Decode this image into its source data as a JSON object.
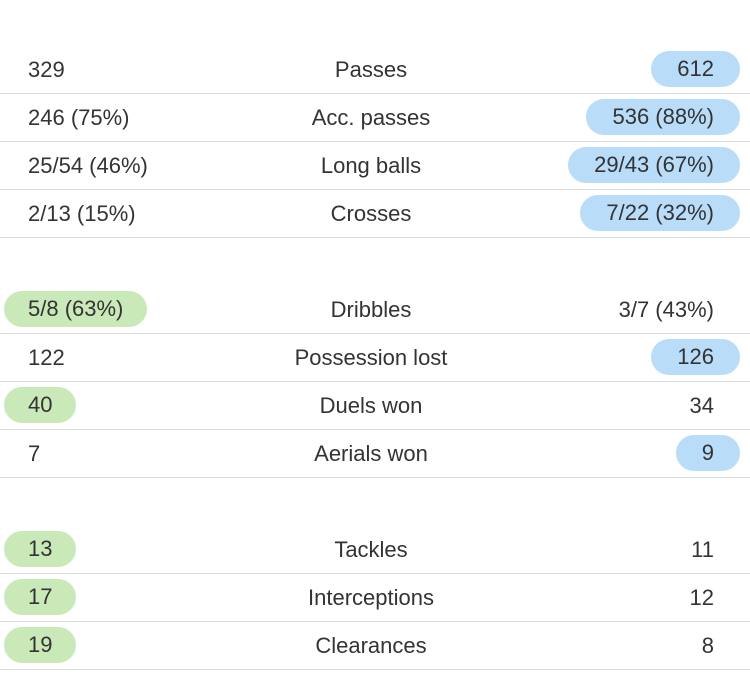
{
  "colors": {
    "home_highlight": "#c9e9b9",
    "away_highlight": "#b9dcf9",
    "text": "#333333",
    "divider": "#dcdcdc"
  },
  "groups": [
    {
      "rows": [
        {
          "label": "Passes",
          "home": "329",
          "away": "612",
          "highlight": "away"
        },
        {
          "label": "Acc. passes",
          "home": "246 (75%)",
          "away": "536 (88%)",
          "highlight": "away"
        },
        {
          "label": "Long balls",
          "home": "25/54 (46%)",
          "away": "29/43 (67%)",
          "highlight": "away"
        },
        {
          "label": "Crosses",
          "home": "2/13 (15%)",
          "away": "7/22 (32%)",
          "highlight": "away"
        }
      ]
    },
    {
      "rows": [
        {
          "label": "Dribbles",
          "home": "5/8 (63%)",
          "away": "3/7 (43%)",
          "highlight": "home"
        },
        {
          "label": "Possession lost",
          "home": "122",
          "away": "126",
          "highlight": "away"
        },
        {
          "label": "Duels won",
          "home": "40",
          "away": "34",
          "highlight": "home"
        },
        {
          "label": "Aerials won",
          "home": "7",
          "away": "9",
          "highlight": "away"
        }
      ]
    },
    {
      "rows": [
        {
          "label": "Tackles",
          "home": "13",
          "away": "11",
          "highlight": "home"
        },
        {
          "label": "Interceptions",
          "home": "17",
          "away": "12",
          "highlight": "home"
        },
        {
          "label": "Clearances",
          "home": "19",
          "away": "8",
          "highlight": "home"
        }
      ]
    }
  ]
}
